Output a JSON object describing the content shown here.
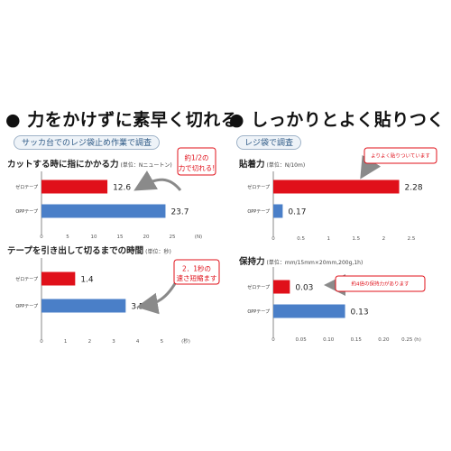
{
  "headings": {
    "left": "● 力をかけずに素早く切れる",
    "right": "● しっかりとよく貼りつく"
  },
  "labels": {
    "left_tag": "サッカ台でのレジ袋止め作業で調査",
    "right_tag": "レジ袋で調査"
  },
  "colors": {
    "red": "#e0101a",
    "blue": "#4a7fc8",
    "axis": "#888888",
    "text": "#222222"
  },
  "chart_data": [
    {
      "type": "bar",
      "orientation": "horizontal",
      "title": "カットする時に指にかかる力",
      "unit": "(単位：Nニュートン)",
      "categories": [
        "ゼロテープ",
        "OPPテープ"
      ],
      "values": [
        12.6,
        23.7
      ],
      "value_labels": [
        "12.6",
        "23.7"
      ],
      "bar_colors": [
        "#e0101a",
        "#4a7fc8"
      ],
      "xlim": [
        0,
        30
      ],
      "xticks": [
        0,
        5,
        10,
        15,
        20,
        25,
        30
      ],
      "xtick_labels": [
        "0",
        "5",
        "10",
        "15",
        "20",
        "25",
        "(N)"
      ],
      "callout": "約1/2の\n力で切れる!"
    },
    {
      "type": "bar",
      "orientation": "horizontal",
      "title": "テープを引き出して切るまでの時間",
      "unit": "(単位：秒)",
      "categories": [
        "ゼロテープ",
        "OPPテープ"
      ],
      "values": [
        1.4,
        3.5
      ],
      "value_labels": [
        "1.4",
        "3.5"
      ],
      "bar_colors": [
        "#e0101a",
        "#4a7fc8"
      ],
      "xlim": [
        0,
        6
      ],
      "xticks": [
        0,
        1,
        2,
        3,
        4,
        5,
        6
      ],
      "xtick_labels": [
        "0",
        "1",
        "2",
        "3",
        "4",
        "5",
        "(秒)"
      ],
      "callout": "2．1秒の\n速さ短縮ます"
    },
    {
      "type": "bar",
      "orientation": "horizontal",
      "title": "貼着力",
      "unit": "(単位：N/10m)",
      "categories": [
        "ゼロテープ",
        "OPPテープ"
      ],
      "values": [
        2.28,
        0.17
      ],
      "value_labels": [
        "2.28",
        "0.17"
      ],
      "bar_colors": [
        "#e0101a",
        "#4a7fc8"
      ],
      "xlim": [
        0,
        2.5
      ],
      "xticks": [
        0,
        0.5,
        1,
        1.5,
        2,
        2.5
      ],
      "xtick_labels": [
        "0",
        "0.5",
        "1",
        "1.5",
        "2",
        "2.5"
      ],
      "callout": "よりよく貼りついています"
    },
    {
      "type": "bar",
      "orientation": "horizontal",
      "title": "保持力",
      "unit": "(単位：mm/15mm×20mm,200g,1h)",
      "categories": [
        "ゼロテープ",
        "OPPテープ"
      ],
      "values": [
        0.03,
        0.13
      ],
      "value_labels": [
        "0.03",
        "0.13"
      ],
      "bar_colors": [
        "#e0101a",
        "#4a7fc8"
      ],
      "xlim": [
        0,
        0.25
      ],
      "xticks": [
        0,
        0.05,
        0.1,
        0.15,
        0.2,
        0.25
      ],
      "xtick_labels": [
        "0",
        "0.05",
        "0.10",
        "0.15",
        "0.20",
        "0.25 (h)"
      ],
      "callout": "約4倍の保持力があります"
    }
  ]
}
